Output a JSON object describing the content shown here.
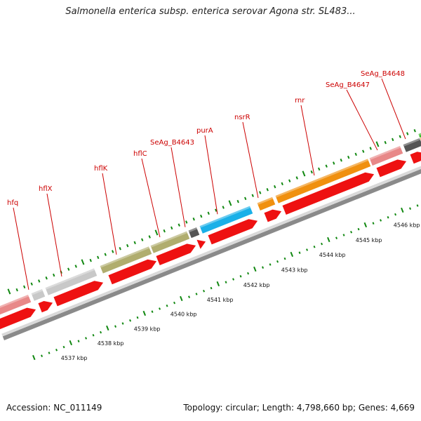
{
  "title": "Salmonella enterica subsp. enterica serovar Agona str. SL483...",
  "footer": {
    "accession": "Accession: NC_011149",
    "topology": "Topology: circular; Length: 4,798,660 bp; Genes: 4,669"
  },
  "colors": {
    "backbone": "#999999",
    "orf_red": "#ee1111",
    "olive": "#b0ad6e",
    "gray_gene": "#c8c8c8",
    "pink_gene": "#e88888",
    "blue_gene": "#1ab0e8",
    "orange_gene": "#f0900f",
    "dark_gene": "#555555",
    "green_gene": "#33bb22",
    "tick_green": "#118811",
    "label_red": "#cc0000"
  },
  "genes": [
    {
      "name": "hfq",
      "color": "pink_gene"
    },
    {
      "name": "hflX",
      "color": "gray_gene"
    },
    {
      "name": "hflK",
      "color": "olive"
    },
    {
      "name": "hflC",
      "color": "olive"
    },
    {
      "name": "SeAg_B4643",
      "color": "dark_gene"
    },
    {
      "name": "purA",
      "color": "blue_gene"
    },
    {
      "name": "nsrR",
      "color": "orange_gene"
    },
    {
      "name": "rnr",
      "color": "orange_gene"
    },
    {
      "name": "SeAg_B4647",
      "color": "pink_gene"
    },
    {
      "name": "SeAg_B4648",
      "color": "dark_gene"
    }
  ],
  "kbp_labels": [
    "4537 kbp",
    "4538 kbp",
    "4539 kbp",
    "4540 kbp",
    "4541 kbp",
    "4542 kbp",
    "4543 kbp",
    "4544 kbp",
    "4545 kbp",
    "4546 kbp"
  ]
}
